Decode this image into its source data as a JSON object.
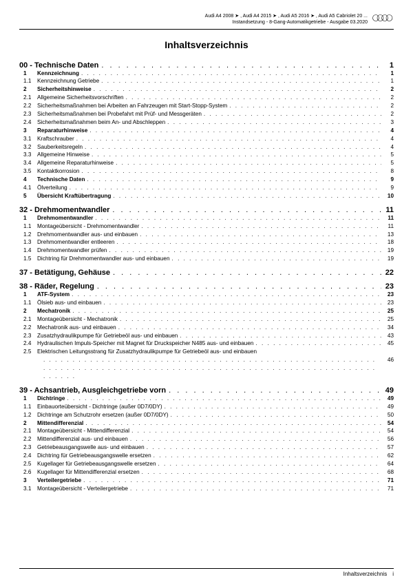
{
  "header": {
    "line1": "Audi A4 2008 ➤ , Audi A4 2015 ➤ , Audi A5 2016 ➤ , Audi A5 Cabriolet 20 ...",
    "line2": "Instandsetzung - 8-Gang-Automatikgetriebe - Ausgabe 03.2020"
  },
  "title": "Inhaltsverzeichnis",
  "sections": [
    {
      "id": "00",
      "title": "Technische Daten",
      "page": "1",
      "items": [
        {
          "n": "1",
          "t": "Kennzeichnung",
          "p": "1",
          "grp": true
        },
        {
          "n": "1.1",
          "t": "Kennzeichnung Getriebe",
          "p": "1"
        },
        {
          "n": "2",
          "t": "Sicherheitshinweise",
          "p": "2",
          "grp": true
        },
        {
          "n": "2.1",
          "t": "Allgemeine Sicherheitsvorschriften",
          "p": "2"
        },
        {
          "n": "2.2",
          "t": "Sicherheitsmaßnahmen bei Arbeiten an Fahrzeugen mit Start-Stopp-System",
          "p": "2"
        },
        {
          "n": "2.3",
          "t": "Sicherheitsmaßnahmen bei Probefahrt mit Prüf- und Messgeräten",
          "p": "2"
        },
        {
          "n": "2.4",
          "t": "Sicherheitsmaßnahmen beim An- und Abschleppen",
          "p": "3"
        },
        {
          "n": "3",
          "t": "Reparaturhinweise",
          "p": "4",
          "grp": true
        },
        {
          "n": "3.1",
          "t": "Kraftschrauber",
          "p": "4"
        },
        {
          "n": "3.2",
          "t": "Sauberkeitsregeln",
          "p": "4"
        },
        {
          "n": "3.3",
          "t": "Allgemeine Hinweise",
          "p": "5"
        },
        {
          "n": "3.4",
          "t": "Allgemeine Reparaturhinweise",
          "p": "5"
        },
        {
          "n": "3.5",
          "t": "Kontaktkorrosion",
          "p": "8"
        },
        {
          "n": "4",
          "t": "Technische Daten",
          "p": "9",
          "grp": true
        },
        {
          "n": "4.1",
          "t": "Ölverteilung",
          "p": "9"
        },
        {
          "n": "5",
          "t": "Übersicht Kraftübertragung",
          "p": "10",
          "grp": true
        }
      ]
    },
    {
      "id": "32",
      "title": "Drehmomentwandler",
      "page": "11",
      "items": [
        {
          "n": "1",
          "t": "Drehmomentwandler",
          "p": "11",
          "grp": true
        },
        {
          "n": "1.1",
          "t": "Montageübersicht - Drehmomentwandler",
          "p": "11"
        },
        {
          "n": "1.2",
          "t": "Drehmomentwandler aus- und einbauen",
          "p": "13"
        },
        {
          "n": "1.3",
          "t": "Drehmomentwandler entleeren",
          "p": "18"
        },
        {
          "n": "1.4",
          "t": "Drehmomentwandler prüfen",
          "p": "19"
        },
        {
          "n": "1.5",
          "t": "Dichtring für Drehmomentwandler aus- und einbauen",
          "p": "19"
        }
      ]
    },
    {
      "id": "37",
      "title": "Betätigung, Gehäuse",
      "page": "22",
      "items": []
    },
    {
      "id": "38",
      "title": "Räder, Regelung",
      "page": "23",
      "items": [
        {
          "n": "1",
          "t": "ATF-System",
          "p": "23",
          "grp": true
        },
        {
          "n": "1.1",
          "t": "Ölsieb aus- und einbauen",
          "p": "23"
        },
        {
          "n": "2",
          "t": "Mechatronik",
          "p": "25",
          "grp": true
        },
        {
          "n": "2.1",
          "t": "Montageübersicht - Mechatronik",
          "p": "25"
        },
        {
          "n": "2.2",
          "t": "Mechatronik aus- und einbauen",
          "p": "34"
        },
        {
          "n": "2.3",
          "t": "Zusatzhydraulikpumpe für Getriebeöl aus- und einbauen",
          "p": "43"
        },
        {
          "n": "2.4",
          "t": "Hydraulischen Impuls-Speicher mit Magnet für Druckspeicher N485 aus- und einbauen",
          "p": "45"
        },
        {
          "n": "2.5",
          "t": "Elektrischen Leitungsstrang für Zusatzhydraulikpumpe für Getriebeöl aus- und einbauen",
          "p": "46",
          "wrap": true
        }
      ]
    },
    {
      "id": "39",
      "title": "Achsantrieb, Ausgleichgetriebe vorn",
      "page": "49",
      "items": [
        {
          "n": "1",
          "t": "Dichtringe",
          "p": "49",
          "grp": true
        },
        {
          "n": "1.1",
          "t": "Einbauorteübersicht - Dichtringe (außer 0D7/0DY)",
          "p": "49"
        },
        {
          "n": "1.2",
          "t": "Dichtringe am Schutzrohr ersetzen (außer 0D7/0DY)",
          "p": "50"
        },
        {
          "n": "2",
          "t": "Mittendifferenzial",
          "p": "54",
          "grp": true
        },
        {
          "n": "2.1",
          "t": "Montageübersicht - Mittendifferenzial",
          "p": "54"
        },
        {
          "n": "2.2",
          "t": "Mittendifferenzial aus- und einbauen",
          "p": "56"
        },
        {
          "n": "2.3",
          "t": "Getriebeausgangswelle aus- und einbauen",
          "p": "57"
        },
        {
          "n": "2.4",
          "t": "Dichtring für Getriebeausgangswelle ersetzen",
          "p": "62"
        },
        {
          "n": "2.5",
          "t": "Kugellager für Getriebeausgangswelle ersetzen",
          "p": "64"
        },
        {
          "n": "2.6",
          "t": "Kugellager für Mittendifferenzial ersetzen",
          "p": "68"
        },
        {
          "n": "3",
          "t": "Verteilergetriebe",
          "p": "71",
          "grp": true
        },
        {
          "n": "3.1",
          "t": "Montageübersicht - Verteilergetriebe",
          "p": "71"
        }
      ]
    }
  ],
  "footer": {
    "label": "Inhaltsverzeichnis",
    "page": "i"
  }
}
